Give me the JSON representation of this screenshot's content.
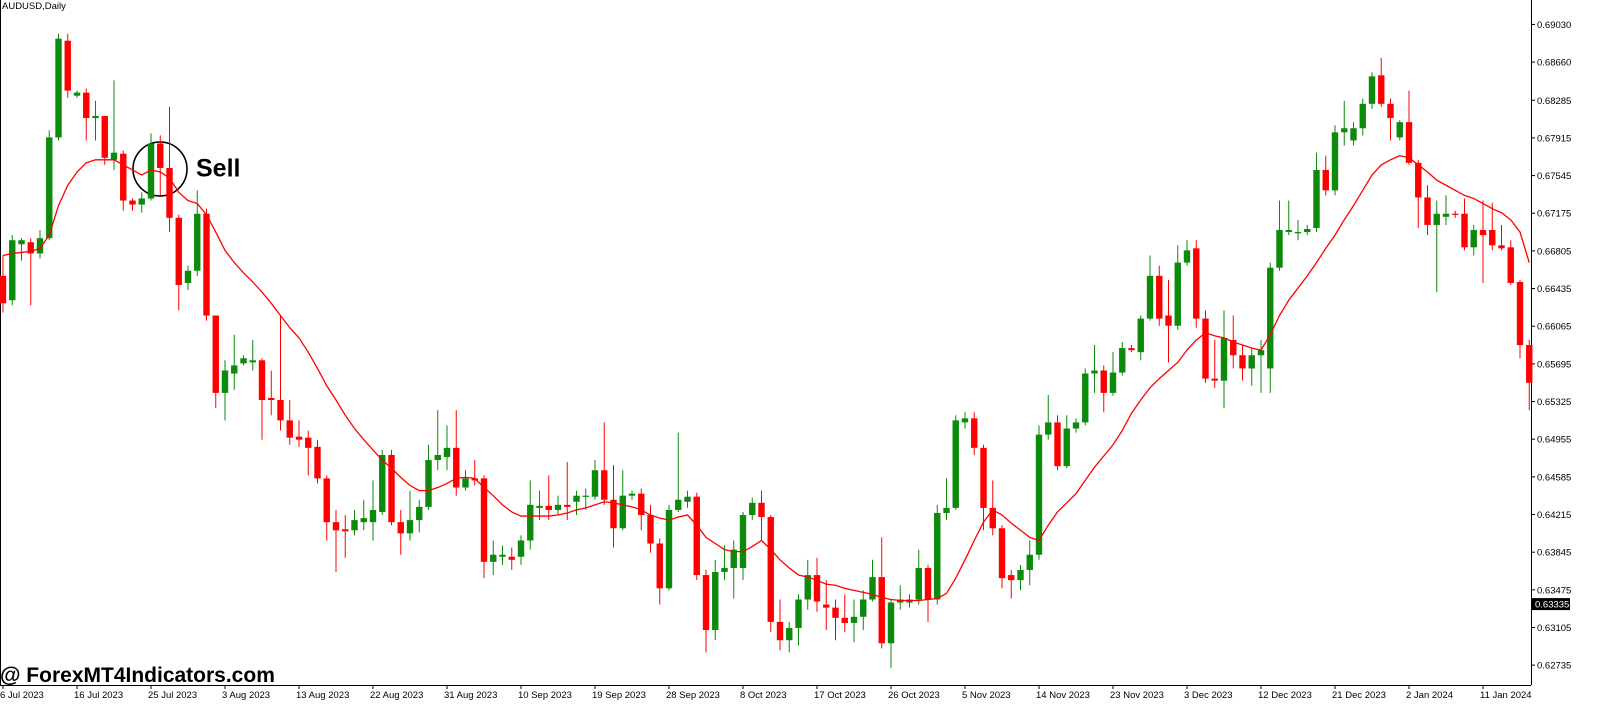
{
  "chart_data": {
    "type": "candlestick",
    "title": "AUDUSD,Daily",
    "watermark": "@ ForexMT4Indicators.com",
    "annotation": "Sell",
    "up_color": "#0b8a0b",
    "down_color": "#ff0000",
    "categories": [
      "6 Jul 2023",
      null,
      null,
      null,
      null,
      null,
      null,
      null,
      "16 Jul 2023",
      null,
      null,
      null,
      null,
      null,
      null,
      null,
      "25 Jul 2023",
      null,
      null,
      null,
      null,
      null,
      null,
      null,
      "3 Aug 2023",
      null,
      null,
      null,
      null,
      null,
      null,
      null,
      "13 Aug 2023",
      null,
      null,
      null,
      null,
      null,
      null,
      null,
      "22 Aug 2023",
      null,
      null,
      null,
      null,
      null,
      null,
      null,
      "31 Aug 2023",
      null,
      null,
      null,
      null,
      null,
      null,
      null,
      "10 Sep 2023",
      null,
      null,
      null,
      null,
      null,
      null,
      null,
      "19 Sep 2023",
      null,
      null,
      null,
      null,
      null,
      null,
      null,
      "28 Sep 2023",
      null,
      null,
      null,
      null,
      null,
      null,
      null,
      "8 Oct 2023",
      null,
      null,
      null,
      null,
      null,
      null,
      null,
      "17 Oct 2023",
      null,
      null,
      null,
      null,
      null,
      null,
      null,
      "26 Oct 2023",
      null,
      null,
      null,
      null,
      null,
      null,
      null,
      "5 Nov 2023",
      null,
      null,
      null,
      null,
      null,
      null,
      null,
      "14 Nov 2023",
      null,
      null,
      null,
      null,
      null,
      null,
      null,
      "23 Nov 2023",
      null,
      null,
      null,
      null,
      null,
      null,
      null,
      "3 Dec 2023",
      null,
      null,
      null,
      null,
      null,
      null,
      null,
      "12 Dec 2023",
      null,
      null,
      null,
      null,
      null,
      null,
      null,
      "21 Dec 2023",
      null,
      null,
      null,
      null,
      null,
      null,
      null,
      "2 Jan 2024",
      null,
      null,
      null,
      null,
      null,
      null,
      null,
      "11 Jan 2024",
      null,
      null,
      null,
      null,
      null
    ],
    "ohlc": [
      [
        0.6656,
        0.6676,
        0.662,
        0.6629
      ],
      [
        0.6632,
        0.6696,
        0.6627,
        0.6691
      ],
      [
        0.6687,
        0.6693,
        0.6671,
        0.6691
      ],
      [
        0.6689,
        0.6693,
        0.6627,
        0.6678
      ],
      [
        0.6678,
        0.6701,
        0.6673,
        0.6693
      ],
      [
        0.6693,
        0.6799,
        0.6691,
        0.6792
      ],
      [
        0.6792,
        0.6894,
        0.6789,
        0.6889
      ],
      [
        0.6887,
        0.6894,
        0.6831,
        0.6838
      ],
      [
        0.6833,
        0.6838,
        0.6831,
        0.6836
      ],
      [
        0.6836,
        0.684,
        0.6789,
        0.6811
      ],
      [
        0.6811,
        0.6828,
        0.6789,
        0.6813
      ],
      [
        0.6813,
        0.6813,
        0.6765,
        0.6772
      ],
      [
        0.677,
        0.6848,
        0.676,
        0.6777
      ],
      [
        0.6776,
        0.6779,
        0.672,
        0.673
      ],
      [
        0.673,
        0.6732,
        0.672,
        0.6726
      ],
      [
        0.6726,
        0.6738,
        0.6718,
        0.6732
      ],
      [
        0.6732,
        0.6796,
        0.673,
        0.6786
      ],
      [
        0.6786,
        0.6794,
        0.6735,
        0.6762
      ],
      [
        0.6762,
        0.6822,
        0.6699,
        0.6713
      ],
      [
        0.6713,
        0.6716,
        0.6622,
        0.6647
      ],
      [
        0.6649,
        0.6666,
        0.6642,
        0.6661
      ],
      [
        0.6661,
        0.674,
        0.6656,
        0.6717
      ],
      [
        0.6717,
        0.6722,
        0.6612,
        0.6617
      ],
      [
        0.6617,
        0.6617,
        0.6526,
        0.6541
      ],
      [
        0.6541,
        0.6573,
        0.6514,
        0.6563
      ],
      [
        0.656,
        0.6598,
        0.6544,
        0.6568
      ],
      [
        0.657,
        0.6578,
        0.6568,
        0.6575
      ],
      [
        0.6571,
        0.6593,
        0.6563,
        0.6573
      ],
      [
        0.6573,
        0.6575,
        0.6495,
        0.6534
      ],
      [
        0.6536,
        0.6563,
        0.6519,
        0.6534
      ],
      [
        0.6534,
        0.6617,
        0.6504,
        0.6514
      ],
      [
        0.6514,
        0.6534,
        0.649,
        0.6497
      ],
      [
        0.6498,
        0.6514,
        0.6488,
        0.6495
      ],
      [
        0.6497,
        0.6504,
        0.646,
        0.6487
      ],
      [
        0.6488,
        0.6495,
        0.6452,
        0.6457
      ],
      [
        0.6457,
        0.646,
        0.6396,
        0.6414
      ],
      [
        0.6414,
        0.6426,
        0.6365,
        0.6406
      ],
      [
        0.6407,
        0.6421,
        0.6379,
        0.6405
      ],
      [
        0.6406,
        0.6426,
        0.6401,
        0.6416
      ],
      [
        0.6414,
        0.6436,
        0.6406,
        0.6418
      ],
      [
        0.6414,
        0.6455,
        0.6396,
        0.6426
      ],
      [
        0.6424,
        0.6485,
        0.6421,
        0.648
      ],
      [
        0.648,
        0.6485,
        0.6411,
        0.6414
      ],
      [
        0.6414,
        0.6426,
        0.6382,
        0.6403
      ],
      [
        0.6403,
        0.6445,
        0.6396,
        0.6416
      ],
      [
        0.6416,
        0.6436,
        0.6404,
        0.6429
      ],
      [
        0.6429,
        0.649,
        0.6426,
        0.6475
      ],
      [
        0.6475,
        0.6524,
        0.6465,
        0.648
      ],
      [
        0.6478,
        0.6509,
        0.6465,
        0.6487
      ],
      [
        0.6487,
        0.6524,
        0.644,
        0.6448
      ],
      [
        0.6448,
        0.6465,
        0.6445,
        0.6457
      ],
      [
        0.6457,
        0.6475,
        0.645,
        0.6455
      ],
      [
        0.6457,
        0.646,
        0.6359,
        0.6375
      ],
      [
        0.6375,
        0.6396,
        0.6362,
        0.6382
      ],
      [
        0.638,
        0.6391,
        0.6372,
        0.6382
      ],
      [
        0.638,
        0.6389,
        0.6367,
        0.6377
      ],
      [
        0.638,
        0.6401,
        0.6372,
        0.6396
      ],
      [
        0.6396,
        0.6455,
        0.6387,
        0.6431
      ],
      [
        0.6428,
        0.6445,
        0.6416,
        0.643
      ],
      [
        0.643,
        0.646,
        0.6416,
        0.6426
      ],
      [
        0.6426,
        0.644,
        0.6421,
        0.6431
      ],
      [
        0.6431,
        0.6473,
        0.6416,
        0.6429
      ],
      [
        0.6434,
        0.6445,
        0.6421,
        0.644
      ],
      [
        0.6439,
        0.6447,
        0.6426,
        0.644
      ],
      [
        0.6439,
        0.6475,
        0.6436,
        0.6465
      ],
      [
        0.6465,
        0.6512,
        0.6431,
        0.6436
      ],
      [
        0.6436,
        0.647,
        0.6389,
        0.6408
      ],
      [
        0.6408,
        0.6465,
        0.6406,
        0.644
      ],
      [
        0.644,
        0.6445,
        0.6436,
        0.6442
      ],
      [
        0.6442,
        0.6447,
        0.6406,
        0.6421
      ],
      [
        0.6421,
        0.6431,
        0.6384,
        0.6393
      ],
      [
        0.6393,
        0.6398,
        0.6333,
        0.6349
      ],
      [
        0.6349,
        0.6431,
        0.6347,
        0.6426
      ],
      [
        0.6426,
        0.6502,
        0.6424,
        0.6436
      ],
      [
        0.6434,
        0.6445,
        0.6428,
        0.6439
      ],
      [
        0.6439,
        0.6443,
        0.6357,
        0.6362
      ],
      [
        0.6362,
        0.6367,
        0.6286,
        0.6308
      ],
      [
        0.6308,
        0.6377,
        0.6298,
        0.6365
      ],
      [
        0.6365,
        0.6391,
        0.6357,
        0.6369
      ],
      [
        0.6369,
        0.6396,
        0.6339,
        0.6387
      ],
      [
        0.6369,
        0.6424,
        0.6357,
        0.6421
      ],
      [
        0.6421,
        0.6438,
        0.6416,
        0.6433
      ],
      [
        0.6433,
        0.6445,
        0.6396,
        0.6419
      ],
      [
        0.6419,
        0.6421,
        0.6306,
        0.6316
      ],
      [
        0.6316,
        0.6338,
        0.6288,
        0.6298
      ],
      [
        0.6298,
        0.6316,
        0.6286,
        0.631
      ],
      [
        0.631,
        0.6343,
        0.6293,
        0.6338
      ],
      [
        0.6338,
        0.6377,
        0.6328,
        0.6362
      ],
      [
        0.6362,
        0.6379,
        0.6326,
        0.6336
      ],
      [
        0.6333,
        0.6357,
        0.6308,
        0.633
      ],
      [
        0.633,
        0.6338,
        0.6298,
        0.632
      ],
      [
        0.632,
        0.6343,
        0.6306,
        0.6315
      ],
      [
        0.6315,
        0.6338,
        0.6296,
        0.6321
      ],
      [
        0.6321,
        0.6347,
        0.6308,
        0.6338
      ],
      [
        0.6338,
        0.6377,
        0.6336,
        0.636
      ],
      [
        0.636,
        0.6399,
        0.629,
        0.6295
      ],
      [
        0.6295,
        0.6338,
        0.6271,
        0.6335
      ],
      [
        0.6335,
        0.6352,
        0.6328,
        0.6338
      ],
      [
        0.6335,
        0.6343,
        0.633,
        0.6338
      ],
      [
        0.6338,
        0.6387,
        0.6333,
        0.6369
      ],
      [
        0.6369,
        0.6372,
        0.6316,
        0.6338
      ],
      [
        0.6338,
        0.6431,
        0.6333,
        0.6423
      ],
      [
        0.6423,
        0.6457,
        0.6416,
        0.6428
      ],
      [
        0.6428,
        0.6519,
        0.6426,
        0.6514
      ],
      [
        0.6512,
        0.6522,
        0.6506,
        0.6516
      ],
      [
        0.6516,
        0.6522,
        0.648,
        0.6487
      ],
      [
        0.6487,
        0.649,
        0.6406,
        0.6428
      ],
      [
        0.6428,
        0.6455,
        0.6401,
        0.6408
      ],
      [
        0.6408,
        0.6411,
        0.6349,
        0.6359
      ],
      [
        0.6362,
        0.6367,
        0.6339,
        0.6357
      ],
      [
        0.6357,
        0.6372,
        0.6347,
        0.6367
      ],
      [
        0.6367,
        0.6396,
        0.6352,
        0.6382
      ],
      [
        0.6382,
        0.6509,
        0.6377,
        0.65
      ],
      [
        0.65,
        0.6539,
        0.6495,
        0.6512
      ],
      [
        0.6512,
        0.6519,
        0.6465,
        0.6469
      ],
      [
        0.6469,
        0.6519,
        0.6467,
        0.6506
      ],
      [
        0.6506,
        0.6516,
        0.6502,
        0.6512
      ],
      [
        0.6512,
        0.6565,
        0.6509,
        0.656
      ],
      [
        0.656,
        0.6588,
        0.6541,
        0.6563
      ],
      [
        0.6563,
        0.6568,
        0.6522,
        0.6541
      ],
      [
        0.6541,
        0.6581,
        0.6538,
        0.6561
      ],
      [
        0.6561,
        0.6591,
        0.6558,
        0.6585
      ],
      [
        0.6585,
        0.6588,
        0.6581,
        0.6583
      ],
      [
        0.6581,
        0.6617,
        0.6573,
        0.6614
      ],
      [
        0.6614,
        0.6676,
        0.6612,
        0.6656
      ],
      [
        0.6656,
        0.6666,
        0.6607,
        0.6614
      ],
      [
        0.6617,
        0.6652,
        0.6571,
        0.6607
      ],
      [
        0.6607,
        0.6686,
        0.6603,
        0.6669
      ],
      [
        0.6669,
        0.6691,
        0.6666,
        0.6681
      ],
      [
        0.6683,
        0.6691,
        0.6605,
        0.6614
      ],
      [
        0.6614,
        0.6622,
        0.6551,
        0.6555
      ],
      [
        0.6555,
        0.6593,
        0.6546,
        0.6553
      ],
      [
        0.6553,
        0.6622,
        0.6526,
        0.6595
      ],
      [
        0.6593,
        0.6617,
        0.6565,
        0.6578
      ],
      [
        0.6578,
        0.6588,
        0.6553,
        0.6565
      ],
      [
        0.6565,
        0.6585,
        0.6548,
        0.6578
      ],
      [
        0.6578,
        0.6593,
        0.6541,
        0.6583
      ],
      [
        0.6565,
        0.6669,
        0.6541,
        0.6664
      ],
      [
        0.6664,
        0.673,
        0.6661,
        0.6701
      ],
      [
        0.6699,
        0.673,
        0.6696,
        0.6701
      ],
      [
        0.6698,
        0.6711,
        0.6691,
        0.6699
      ],
      [
        0.6699,
        0.6706,
        0.6696,
        0.6702
      ],
      [
        0.6703,
        0.6777,
        0.6699,
        0.676
      ],
      [
        0.676,
        0.6774,
        0.6735,
        0.674
      ],
      [
        0.674,
        0.6804,
        0.6735,
        0.6797
      ],
      [
        0.6797,
        0.6828,
        0.6784,
        0.6801
      ],
      [
        0.6789,
        0.6807,
        0.6784,
        0.6801
      ],
      [
        0.6801,
        0.683,
        0.6794,
        0.6825
      ],
      [
        0.6825,
        0.6856,
        0.682,
        0.6852
      ],
      [
        0.6853,
        0.687,
        0.6822,
        0.6825
      ],
      [
        0.6825,
        0.683,
        0.6789,
        0.6811
      ],
      [
        0.6792,
        0.6809,
        0.6789,
        0.6807
      ],
      [
        0.6807,
        0.6838,
        0.6765,
        0.6767
      ],
      [
        0.6767,
        0.677,
        0.6703,
        0.6733
      ],
      [
        0.6733,
        0.6745,
        0.6696,
        0.6706
      ],
      [
        0.6706,
        0.673,
        0.664,
        0.6717
      ],
      [
        0.6714,
        0.6735,
        0.6706,
        0.6717
      ],
      [
        0.6717,
        0.672,
        0.6713,
        0.6716
      ],
      [
        0.6717,
        0.6732,
        0.6681,
        0.6684
      ],
      [
        0.6684,
        0.6706,
        0.6676,
        0.6701
      ],
      [
        0.6701,
        0.673,
        0.6649,
        0.6696
      ],
      [
        0.6701,
        0.6728,
        0.6681,
        0.6686
      ],
      [
        0.6686,
        0.6706,
        0.6681,
        0.6683
      ],
      [
        0.6684,
        0.6691,
        0.6647,
        0.6649
      ],
      [
        0.665,
        0.6652,
        0.6575,
        0.6588
      ],
      [
        0.6588,
        0.6593,
        0.6524,
        0.6551
      ]
    ],
    "moving_average": {
      "color": "#ff0000",
      "values": [
        0.6676,
        0.6678,
        0.6679,
        0.668,
        0.6683,
        0.6696,
        0.6725,
        0.6745,
        0.6758,
        0.6767,
        0.677,
        0.677,
        0.677,
        0.6765,
        0.676,
        0.6755,
        0.676,
        0.6758,
        0.6752,
        0.6738,
        0.673,
        0.6727,
        0.6716,
        0.6699,
        0.6681,
        0.6669,
        0.6659,
        0.665,
        0.664,
        0.6629,
        0.6617,
        0.6605,
        0.6595,
        0.6581,
        0.6565,
        0.6548,
        0.6534,
        0.6519,
        0.6506,
        0.6495,
        0.6485,
        0.6475,
        0.6467,
        0.6458,
        0.645,
        0.6445,
        0.6445,
        0.6448,
        0.6452,
        0.6457,
        0.6458,
        0.6457,
        0.6448,
        0.644,
        0.6431,
        0.6424,
        0.642,
        0.642,
        0.642,
        0.642,
        0.6421,
        0.6423,
        0.6426,
        0.6428,
        0.6431,
        0.6434,
        0.6433,
        0.6431,
        0.6429,
        0.6426,
        0.6421,
        0.6418,
        0.6416,
        0.6419,
        0.6421,
        0.6411,
        0.6399,
        0.6393,
        0.6387,
        0.6385,
        0.6385,
        0.639,
        0.6396,
        0.6387,
        0.6377,
        0.6369,
        0.6362,
        0.636,
        0.6357,
        0.6353,
        0.6352,
        0.6349,
        0.6347,
        0.6345,
        0.6343,
        0.634,
        0.6338,
        0.6337,
        0.6337,
        0.6337,
        0.6338,
        0.6339,
        0.6344,
        0.6359,
        0.6377,
        0.6396,
        0.6414,
        0.6426,
        0.6421,
        0.6413,
        0.6406,
        0.6399,
        0.6396,
        0.6411,
        0.6424,
        0.6433,
        0.6442,
        0.6455,
        0.6468,
        0.6479,
        0.649,
        0.6504,
        0.6521,
        0.6534,
        0.6546,
        0.6555,
        0.6563,
        0.6571,
        0.6583,
        0.6593,
        0.66,
        0.6597,
        0.6595,
        0.6591,
        0.6588,
        0.6585,
        0.6583,
        0.6598,
        0.6617,
        0.6632,
        0.6644,
        0.6656,
        0.6669,
        0.6683,
        0.6696,
        0.6711,
        0.6725,
        0.674,
        0.6755,
        0.6765,
        0.677,
        0.6774,
        0.6772,
        0.6765,
        0.6758,
        0.675,
        0.6745,
        0.674,
        0.6735,
        0.6732,
        0.6727,
        0.6722,
        0.6718,
        0.6711,
        0.6699,
        0.6669
      ]
    },
    "current_price": 0.63335,
    "ylim": [
      0.6254,
      0.6927
    ],
    "yticks": [
      {
        "value": 0.6903,
        "label": "0.69030"
      },
      {
        "value": 0.6866,
        "label": "0.68660"
      },
      0.68285,
      0.67915,
      0.67545,
      0.67175,
      0.66805,
      0.66435,
      0.66065,
      0.65695,
      0.65325,
      0.64955,
      0.64585,
      0.64215,
      0.63845,
      0.63475,
      0.63105,
      0.62735
    ],
    "grid": false
  }
}
